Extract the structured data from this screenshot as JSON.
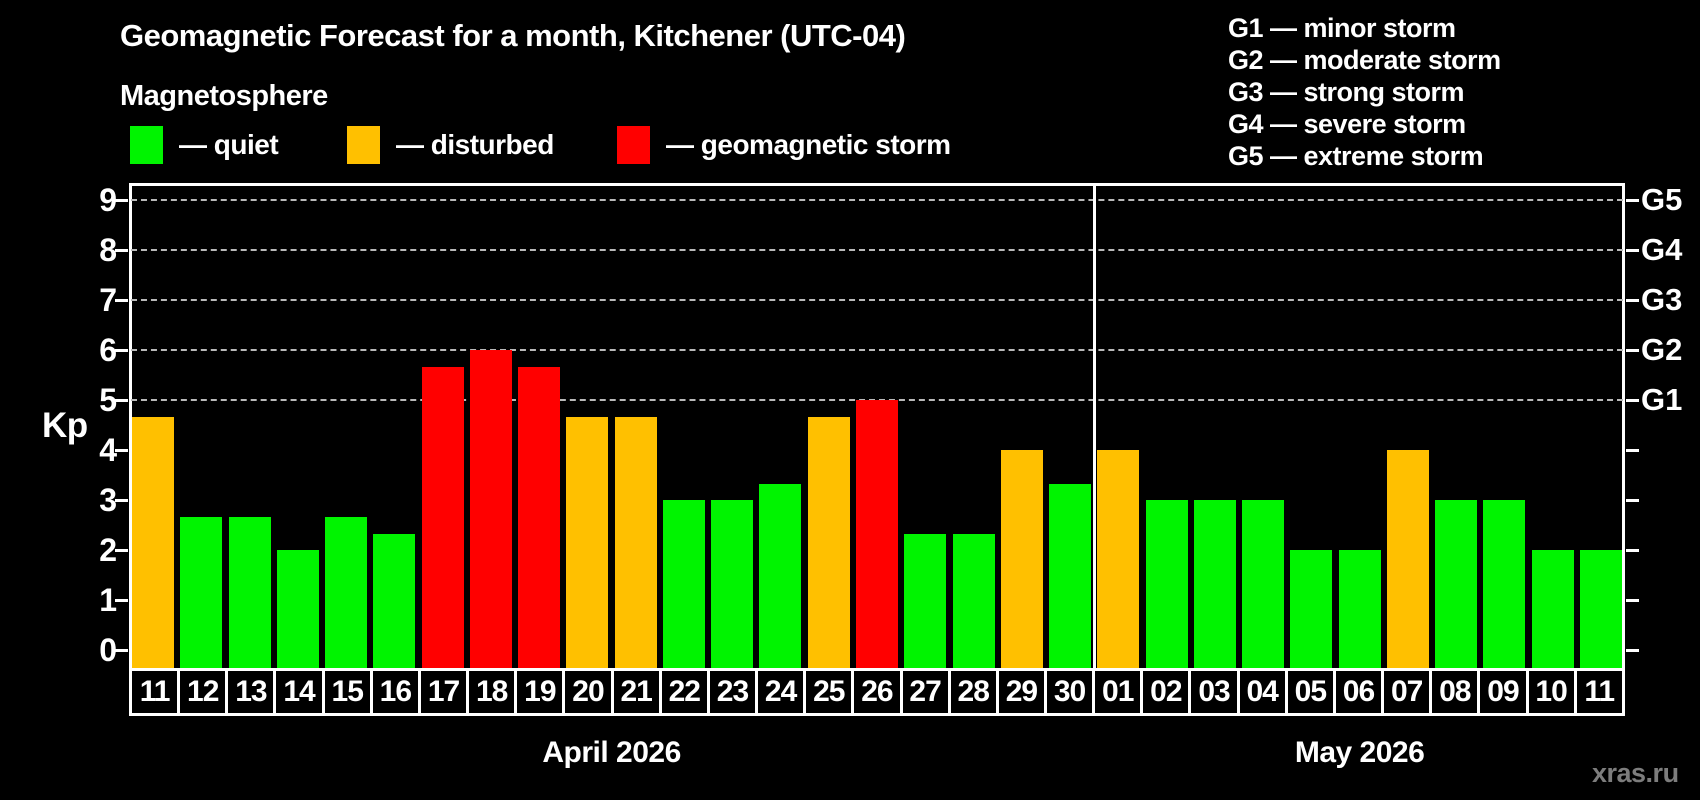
{
  "header": {
    "title": "Geomagnetic Forecast for a month, Kitchener (UTC-04)",
    "subtitle": "Magnetosphere",
    "legend_items": [
      {
        "key": "quiet",
        "label": "— quiet",
        "color": "#00f400"
      },
      {
        "key": "disturbed",
        "label": "— disturbed",
        "color": "#ffc000"
      },
      {
        "key": "storm",
        "label": "— geomagnetic storm",
        "color": "#ff0000"
      }
    ],
    "g_scale_legend": [
      "G1 — minor storm",
      "G2 — moderate storm",
      "G3 — strong storm",
      "G4 — severe storm",
      "G5 — extreme storm"
    ]
  },
  "chart_data": {
    "type": "bar",
    "ylabel": "Kp",
    "ylim": [
      0,
      9
    ],
    "yticks": [
      0,
      1,
      2,
      3,
      4,
      5,
      6,
      7,
      8,
      9
    ],
    "gridlines_at_kp": [
      5,
      6,
      7,
      8,
      9
    ],
    "grid": "dashed horizontal lines at G-storm levels only",
    "right_axis": [
      {
        "kp": 5,
        "label": "G1"
      },
      {
        "kp": 6,
        "label": "G2"
      },
      {
        "kp": 7,
        "label": "G3"
      },
      {
        "kp": 8,
        "label": "G4"
      },
      {
        "kp": 9,
        "label": "G5"
      }
    ],
    "status_colors": {
      "quiet": "#00f400",
      "disturbed": "#ffc000",
      "storm": "#ff0000"
    },
    "months": [
      {
        "key": "april",
        "label": "April 2026"
      },
      {
        "key": "may",
        "label": "May 2026"
      }
    ],
    "bars": [
      {
        "month": "april",
        "day": "11",
        "kp": 4.67,
        "status": "disturbed"
      },
      {
        "month": "april",
        "day": "12",
        "kp": 2.67,
        "status": "quiet"
      },
      {
        "month": "april",
        "day": "13",
        "kp": 2.67,
        "status": "quiet"
      },
      {
        "month": "april",
        "day": "14",
        "kp": 2.0,
        "status": "quiet"
      },
      {
        "month": "april",
        "day": "15",
        "kp": 2.67,
        "status": "quiet"
      },
      {
        "month": "april",
        "day": "16",
        "kp": 2.33,
        "status": "quiet"
      },
      {
        "month": "april",
        "day": "17",
        "kp": 5.67,
        "status": "storm"
      },
      {
        "month": "april",
        "day": "18",
        "kp": 6.0,
        "status": "storm"
      },
      {
        "month": "april",
        "day": "19",
        "kp": 5.67,
        "status": "storm"
      },
      {
        "month": "april",
        "day": "20",
        "kp": 4.67,
        "status": "disturbed"
      },
      {
        "month": "april",
        "day": "21",
        "kp": 4.67,
        "status": "disturbed"
      },
      {
        "month": "april",
        "day": "22",
        "kp": 3.0,
        "status": "quiet"
      },
      {
        "month": "april",
        "day": "23",
        "kp": 3.0,
        "status": "quiet"
      },
      {
        "month": "april",
        "day": "24",
        "kp": 3.33,
        "status": "quiet"
      },
      {
        "month": "april",
        "day": "25",
        "kp": 4.67,
        "status": "disturbed"
      },
      {
        "month": "april",
        "day": "26",
        "kp": 5.0,
        "status": "storm"
      },
      {
        "month": "april",
        "day": "27",
        "kp": 2.33,
        "status": "quiet"
      },
      {
        "month": "april",
        "day": "28",
        "kp": 2.33,
        "status": "quiet"
      },
      {
        "month": "april",
        "day": "29",
        "kp": 4.0,
        "status": "disturbed"
      },
      {
        "month": "april",
        "day": "30",
        "kp": 3.33,
        "status": "quiet"
      },
      {
        "month": "may",
        "day": "01",
        "kp": 4.0,
        "status": "disturbed"
      },
      {
        "month": "may",
        "day": "02",
        "kp": 3.0,
        "status": "quiet"
      },
      {
        "month": "may",
        "day": "03",
        "kp": 3.0,
        "status": "quiet"
      },
      {
        "month": "may",
        "day": "04",
        "kp": 3.0,
        "status": "quiet"
      },
      {
        "month": "may",
        "day": "05",
        "kp": 2.0,
        "status": "quiet"
      },
      {
        "month": "may",
        "day": "06",
        "kp": 2.0,
        "status": "quiet"
      },
      {
        "month": "may",
        "day": "07",
        "kp": 4.0,
        "status": "disturbed"
      },
      {
        "month": "may",
        "day": "08",
        "kp": 3.0,
        "status": "quiet"
      },
      {
        "month": "may",
        "day": "09",
        "kp": 3.0,
        "status": "quiet"
      },
      {
        "month": "may",
        "day": "10",
        "kp": 2.0,
        "status": "quiet"
      },
      {
        "month": "may",
        "day": "11",
        "kp": 2.0,
        "status": "quiet"
      }
    ]
  },
  "watermark": "xras.ru"
}
